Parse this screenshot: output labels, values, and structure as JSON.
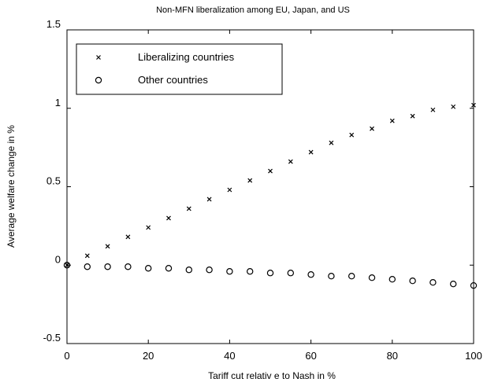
{
  "chart_data": {
    "type": "scatter",
    "title": "Non-MFN liberalization among EU, Japan, and US",
    "xlabel": "Tariff  cut  relativ e to Nash in %",
    "ylabel": "Average welfare change in %",
    "xlim": [
      0,
      100
    ],
    "ylim": [
      -0.5,
      1.5
    ],
    "xticks": [
      "0",
      "20",
      "40",
      "60",
      "80",
      "100"
    ],
    "yticks": [
      "-0.5",
      "0",
      "0.5",
      "1",
      "1.5"
    ],
    "grid": false,
    "legend": {
      "position": "top-left"
    },
    "series": [
      {
        "name": "Liberalizing countries",
        "marker": "x",
        "x": [
          0,
          5,
          10,
          15,
          20,
          25,
          30,
          35,
          40,
          45,
          50,
          55,
          60,
          65,
          70,
          75,
          80,
          85,
          90,
          95,
          100
        ],
        "y": [
          0.0,
          0.06,
          0.12,
          0.18,
          0.24,
          0.3,
          0.36,
          0.42,
          0.48,
          0.54,
          0.6,
          0.66,
          0.72,
          0.78,
          0.83,
          0.87,
          0.92,
          0.95,
          0.99,
          1.01,
          1.02
        ]
      },
      {
        "name": "Other countries",
        "marker": "o",
        "x": [
          0,
          5,
          10,
          15,
          20,
          25,
          30,
          35,
          40,
          45,
          50,
          55,
          60,
          65,
          70,
          75,
          80,
          85,
          90,
          95,
          100
        ],
        "y": [
          0.0,
          -0.01,
          -0.01,
          -0.01,
          -0.02,
          -0.02,
          -0.03,
          -0.03,
          -0.04,
          -0.04,
          -0.05,
          -0.05,
          -0.06,
          -0.07,
          -0.07,
          -0.08,
          -0.09,
          -0.1,
          -0.11,
          -0.12,
          -0.13
        ]
      }
    ]
  }
}
